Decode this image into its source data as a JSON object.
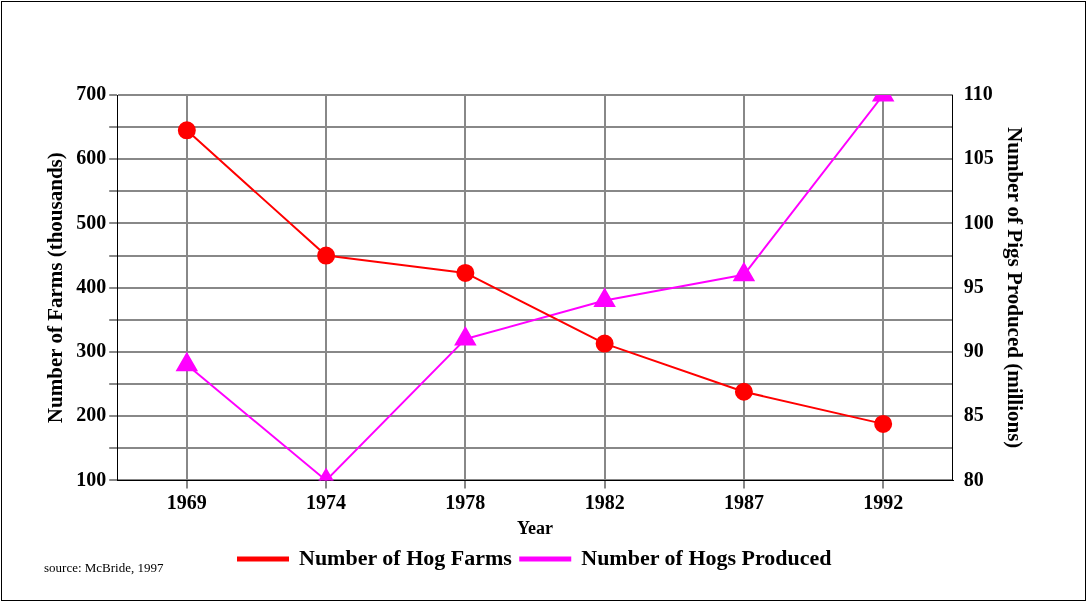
{
  "chart_data": {
    "type": "line",
    "xlabel": "Year",
    "ylabel": "Number of Farms (thousands)",
    "y2label": "Number of Pigs Produced (millions)",
    "categories": [
      "1969",
      "1974",
      "1978",
      "1982",
      "1987",
      "1992"
    ],
    "series": [
      {
        "name": "Number of Hog Farms",
        "color": "#ff0000",
        "marker": "circle",
        "values": [
          645,
          450,
          423,
          313,
          238,
          188
        ]
      },
      {
        "name": "Number of Hogs Produced",
        "color": "#ff00ff",
        "marker": "triangle",
        "axis": "y2",
        "values": [
          89,
          80,
          91,
          94,
          96,
          110
        ]
      }
    ],
    "ylim": [
      100,
      700
    ],
    "yticks": [
      100,
      {
        "value": 150,
        "label": null
      },
      200,
      {
        "value": 250,
        "label": null
      },
      300,
      {
        "value": 350,
        "label": null
      },
      400,
      {
        "value": 450,
        "label": null
      },
      500,
      {
        "value": 550,
        "label": null
      },
      600,
      {
        "value": 650,
        "label": null
      },
      700
    ],
    "y2lim": [
      80,
      110
    ],
    "y2ticks": [
      80,
      85,
      90,
      95,
      100,
      105,
      110
    ],
    "grid": true,
    "legend": "bottom",
    "line_style": "solid",
    "annotations": [
      "source: McBride, 1997"
    ]
  }
}
